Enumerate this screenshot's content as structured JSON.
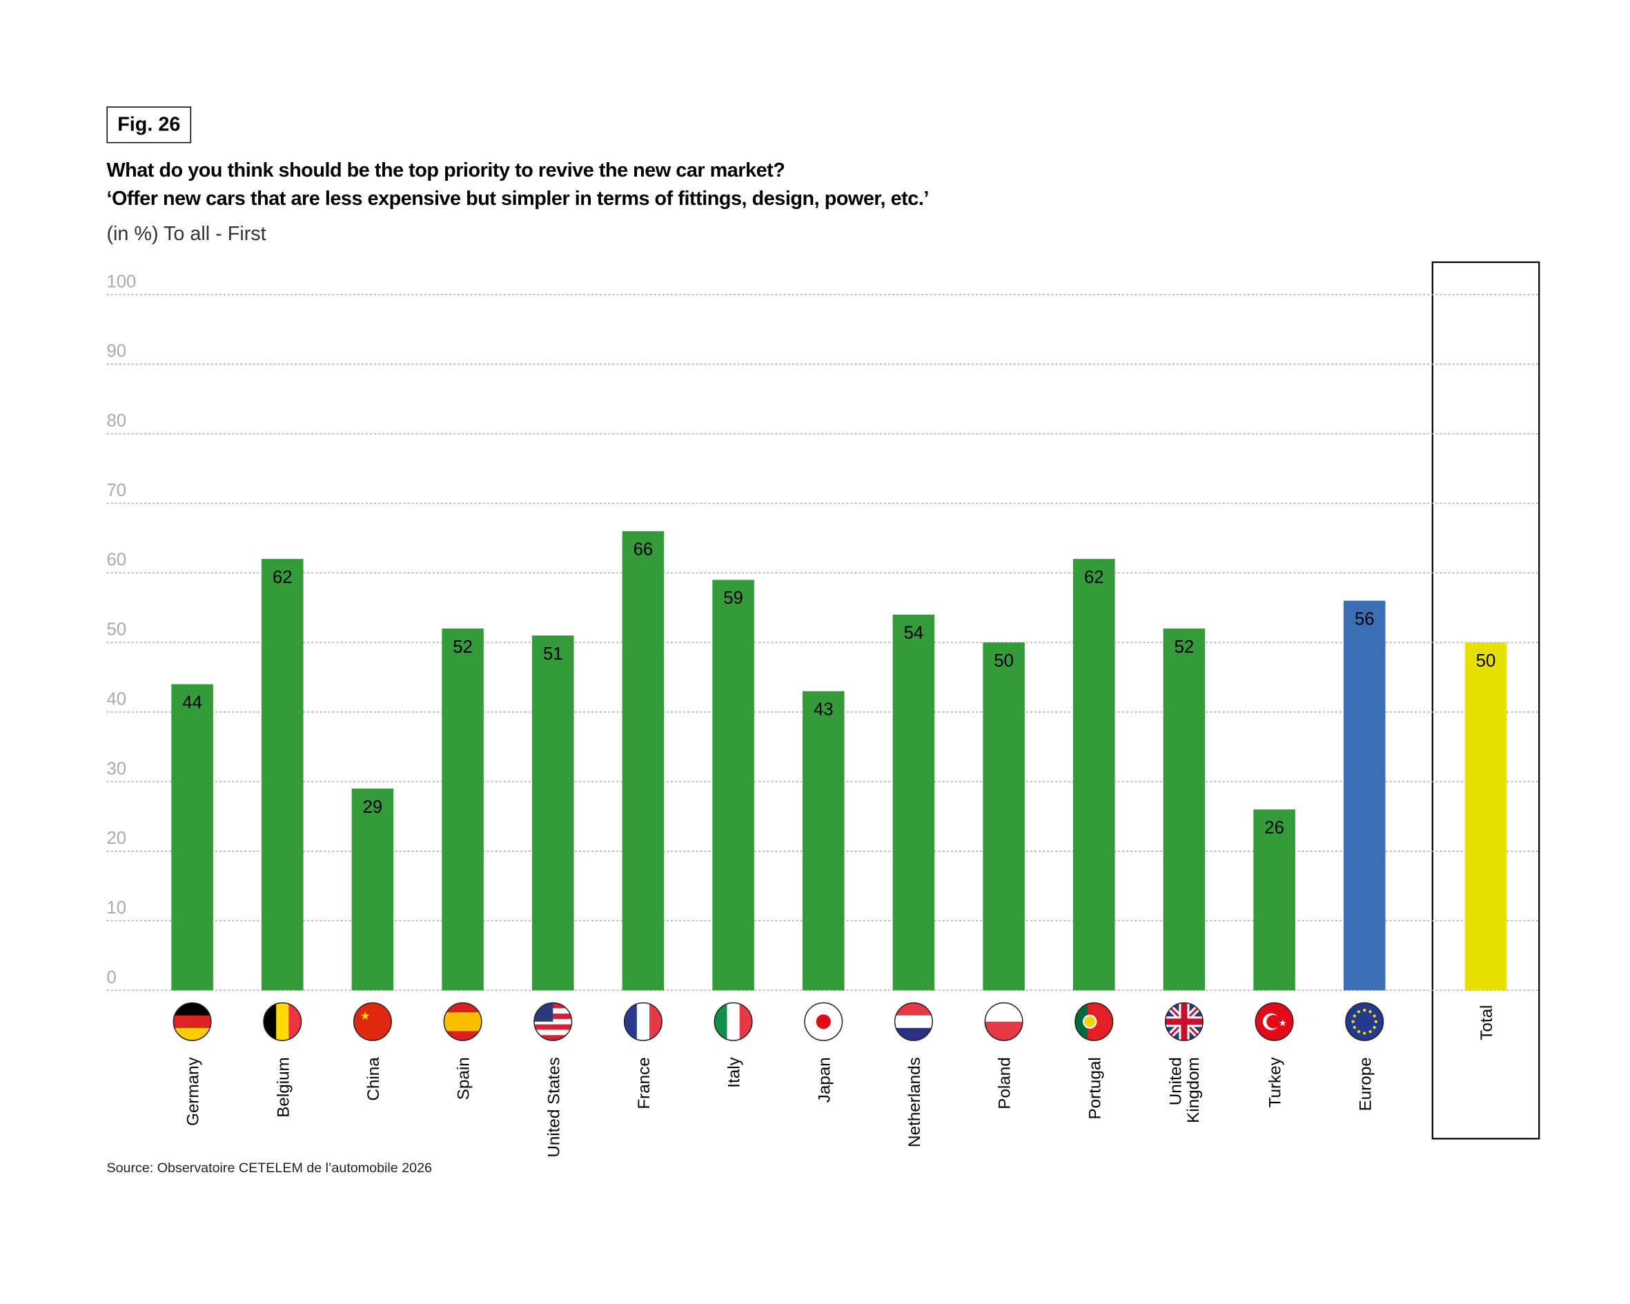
{
  "figure_label": "Fig. 26",
  "title_line1": "What do you think should be the top priority to revive the new car market?",
  "title_line2": "‘Offer new cars that are less expensive but simpler in terms of fittings, design, power, etc.’",
  "subtitle": "(in %) To all - First",
  "source": "Source: Observatoire CETELEM de l’automobile 2026",
  "colors": {
    "country": "#359a3a",
    "europe": "#3b6eb5",
    "total": "#e6e000",
    "grid": "#aaaaaa",
    "tick": "#aaaaaa"
  },
  "chart_data": {
    "type": "bar",
    "title": "What do you think should be the top priority to revive the new car market?",
    "ylim": [
      0,
      100
    ],
    "yticks": [
      "0",
      "10",
      "20",
      "30",
      "40",
      "50",
      "60",
      "70",
      "80",
      "90",
      "100"
    ],
    "grid": true,
    "categories": [
      "Germany",
      "Belgium",
      "China",
      "Spain",
      "United States",
      "France",
      "Italy",
      "Japan",
      "Netherlands",
      "Poland",
      "Portugal",
      "United Kingdom",
      "Turkey",
      "Europe",
      "Total"
    ],
    "values": [
      44,
      62,
      29,
      52,
      51,
      66,
      59,
      43,
      54,
      50,
      62,
      52,
      26,
      56,
      50
    ],
    "bar_kind": [
      "country",
      "country",
      "country",
      "country",
      "country",
      "country",
      "country",
      "country",
      "country",
      "country",
      "country",
      "country",
      "country",
      "europe",
      "total"
    ],
    "flags": [
      {
        "dir": "h",
        "c": [
          "#000000",
          "#dd2222",
          "#ffcc00"
        ]
      },
      {
        "dir": "v",
        "c": [
          "#000000",
          "#ffd90c",
          "#ef3340"
        ]
      },
      {
        "dir": "h",
        "c": [
          "#de2910"
        ]
      },
      {
        "dir": "h",
        "c": [
          "#d91f1f",
          "#fcbf00",
          "#fcbf00",
          "#d91f1f"
        ]
      },
      {
        "dir": "h",
        "c": [
          "#d22234",
          "#ffffff",
          "#d22234",
          "#ffffff",
          "#d22234",
          "#ffffff",
          "#d22234"
        ]
      },
      {
        "dir": "v",
        "c": [
          "#2b3a8c",
          "#ffffff",
          "#e63946"
        ]
      },
      {
        "dir": "v",
        "c": [
          "#0f8f47",
          "#ffffff",
          "#e63946"
        ]
      },
      {
        "dir": "h",
        "c": [
          "#ffffff"
        ]
      },
      {
        "dir": "h",
        "c": [
          "#e63946",
          "#ffffff",
          "#2b3080"
        ]
      },
      {
        "dir": "h",
        "c": [
          "#ffffff",
          "#e63946"
        ]
      },
      {
        "dir": "v",
        "c": [
          "#006b3a",
          "#e21e26",
          "#e21e26"
        ]
      },
      {
        "dir": "h",
        "c": [
          "#2b3a7a"
        ]
      },
      {
        "dir": "h",
        "c": [
          "#e30a17"
        ]
      },
      {
        "dir": "h",
        "c": [
          "#233a8f"
        ]
      }
    ]
  }
}
